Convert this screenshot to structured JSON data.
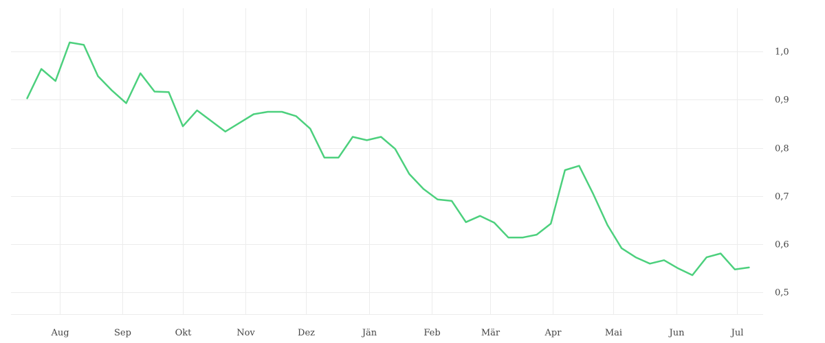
{
  "chart_data": {
    "type": "line",
    "title": "",
    "xlabel": "",
    "ylabel": "",
    "x_tick_labels": [
      "Aug",
      "Sep",
      "Okt",
      "Nov",
      "Dez",
      "Jän",
      "Feb",
      "Mär",
      "Apr",
      "Mai",
      "Jun",
      "Jul"
    ],
    "y_tick_labels": [
      "1,0",
      "0,9",
      "0,8",
      "0,7",
      "0,6",
      "0,5"
    ],
    "y_ticks": [
      1.0,
      0.9,
      0.8,
      0.7,
      0.6,
      0.5
    ],
    "ylim": [
      0.455,
      1.09
    ],
    "xlim": [
      "2023-07-08",
      "2024-07-14"
    ],
    "x_tick_dates": [
      "2023-08-01",
      "2023-09-01",
      "2023-10-01",
      "2023-11-01",
      "2023-12-01",
      "2024-01-01",
      "2024-02-01",
      "2024-03-01",
      "2024-04-01",
      "2024-05-01",
      "2024-06-01",
      "2024-07-01"
    ],
    "grid": true,
    "y_axis_position": "right",
    "series": [
      {
        "color": "#4cd07d",
        "x": [
          "2023-07-16",
          "2023-07-23",
          "2023-07-30",
          "2023-08-06",
          "2023-08-13",
          "2023-08-20",
          "2023-08-27",
          "2023-09-03",
          "2023-09-10",
          "2023-09-17",
          "2023-09-24",
          "2023-10-01",
          "2023-10-08",
          "2023-10-22",
          "2023-10-29",
          "2023-11-05",
          "2023-11-12",
          "2023-11-19",
          "2023-11-26",
          "2023-12-03",
          "2023-12-10",
          "2023-12-17",
          "2023-12-24",
          "2023-12-31",
          "2024-01-07",
          "2024-01-14",
          "2024-01-21",
          "2024-01-28",
          "2024-02-04",
          "2024-02-11",
          "2024-02-18",
          "2024-02-25",
          "2024-03-03",
          "2024-03-10",
          "2024-03-17",
          "2024-03-24",
          "2024-03-31",
          "2024-04-07",
          "2024-04-14",
          "2024-04-21",
          "2024-04-28",
          "2024-05-05",
          "2024-05-12",
          "2024-05-19",
          "2024-05-26",
          "2024-06-02",
          "2024-06-09",
          "2024-06-16",
          "2024-06-23",
          "2024-06-30",
          "2024-07-07"
        ],
        "values": [
          0.903,
          0.964,
          0.939,
          1.019,
          1.014,
          0.949,
          0.919,
          0.893,
          0.955,
          0.917,
          0.916,
          0.845,
          0.878,
          0.834,
          0.852,
          0.87,
          0.875,
          0.875,
          0.866,
          0.84,
          0.78,
          0.78,
          0.823,
          0.816,
          0.823,
          0.798,
          0.746,
          0.715,
          0.693,
          0.69,
          0.646,
          0.659,
          0.645,
          0.614,
          0.614,
          0.62,
          0.643,
          0.754,
          0.763,
          0.704,
          0.64,
          0.592,
          0.573,
          0.56,
          0.567,
          0.55,
          0.536,
          0.573,
          0.581,
          0.548,
          0.552
        ]
      }
    ]
  }
}
